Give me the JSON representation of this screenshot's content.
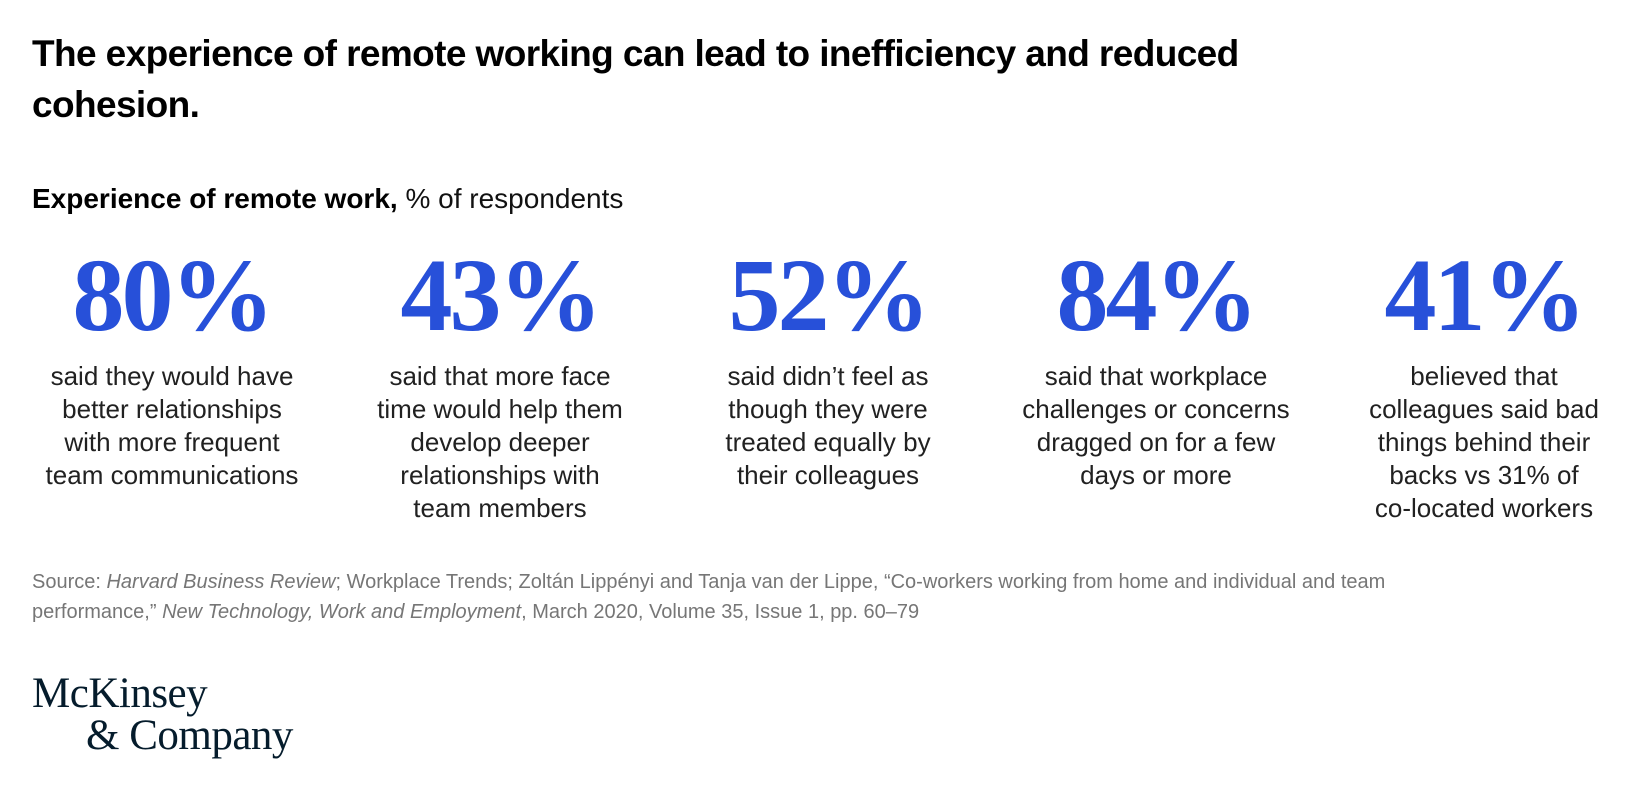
{
  "colors": {
    "accent_blue": "#2750d9",
    "text_black": "#000000",
    "body_text": "#212121",
    "source_gray": "#767676",
    "logo_navy": "#051c2c"
  },
  "title_lines": [
    "The experience of remote working can lead to inefficiency and reduced",
    "cohesion."
  ],
  "subtitle": {
    "bold": "Experience of remote work,",
    "rest": " % of respondents"
  },
  "stats": [
    {
      "value": "80%",
      "lines": [
        "said they would have",
        "better relationships",
        "with more frequent",
        "team communications"
      ]
    },
    {
      "value": "43%",
      "lines": [
        "said that more face",
        "time would help them",
        "develop deeper",
        "relationships with",
        "team members"
      ]
    },
    {
      "value": "52%",
      "lines": [
        "said didn’t feel as",
        "though they were",
        "treated equally by",
        "their colleagues"
      ]
    },
    {
      "value": "84%",
      "lines": [
        "said that workplace",
        "challenges or concerns",
        "dragged on for a few",
        "days or more"
      ]
    },
    {
      "value": "41%",
      "lines": [
        "believed that",
        "colleagues said bad",
        "things behind their",
        "backs vs 31% of",
        "co-located workers"
      ]
    }
  ],
  "source": {
    "segments": [
      {
        "text": "Source: ",
        "italic": false
      },
      {
        "text": "Harvard Business Review",
        "italic": true
      },
      {
        "text": "; Workplace Trends; Zoltán Lippényi and Tanja van der Lippe, “Co-workers working from home and individual and team performance,” ",
        "italic": false
      },
      {
        "text": "New Technology, Work and Employment",
        "italic": true
      },
      {
        "text": ", March 2020, Volume 35, Issue 1, pp. 60–79",
        "italic": false
      }
    ]
  },
  "logo": {
    "line1": "McKinsey",
    "line2": "& Company"
  },
  "chart_data": {
    "type": "table",
    "title": "Experience of remote work, % of respondents",
    "headline": "The experience of remote working can lead to inefficiency and reduced cohesion.",
    "categories": [
      "said they would have better relationships with more frequent team communications",
      "said that more face time would help them develop deeper relationships with team members",
      "said didn’t feel as though they were treated equally by their colleagues",
      "said that workplace challenges or concerns dragged on for a few days or more",
      "believed that colleagues said bad things behind their backs vs 31% of co-located workers"
    ],
    "values": [
      80,
      43,
      52,
      84,
      41
    ],
    "unit": "%"
  }
}
